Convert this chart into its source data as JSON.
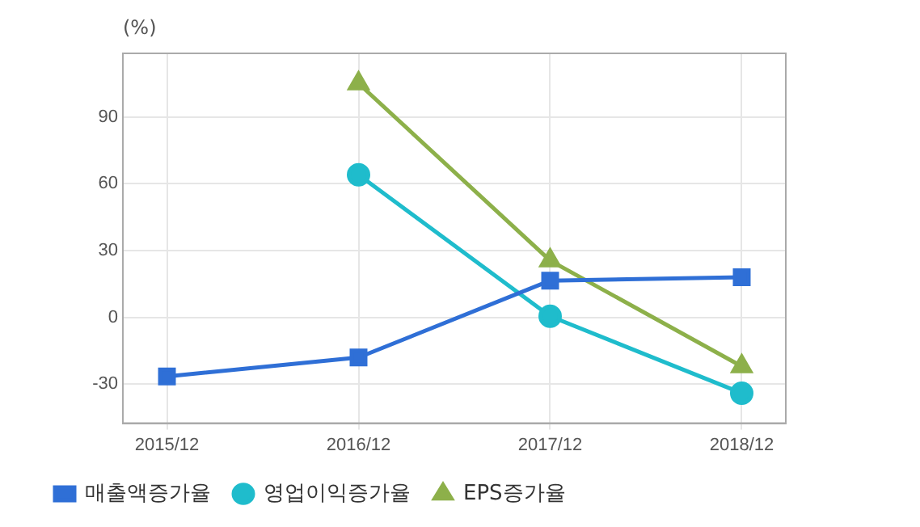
{
  "chart_data": {
    "type": "line",
    "ylabel": "(%)",
    "categories": [
      "2015/12",
      "2016/12",
      "2017/12",
      "2018/12"
    ],
    "series": [
      {
        "name": "매출액증가율",
        "color": "#2f6fd6",
        "marker": "square",
        "values": [
          -26.5,
          -18,
          16.5,
          18
        ]
      },
      {
        "name": "영업이익증가율",
        "color": "#1fbccc",
        "marker": "circle",
        "values": [
          null,
          64,
          0.5,
          -34
        ]
      },
      {
        "name": "EPS증가율",
        "color": "#8db04a",
        "marker": "triangle",
        "values": [
          null,
          105,
          25.5,
          -22
        ]
      }
    ],
    "ylim": [
      -47.5,
      118.5
    ],
    "yticks": [
      -30,
      0,
      30,
      60,
      90
    ],
    "grid": true,
    "legend": "bottom",
    "line_style": "solid"
  }
}
